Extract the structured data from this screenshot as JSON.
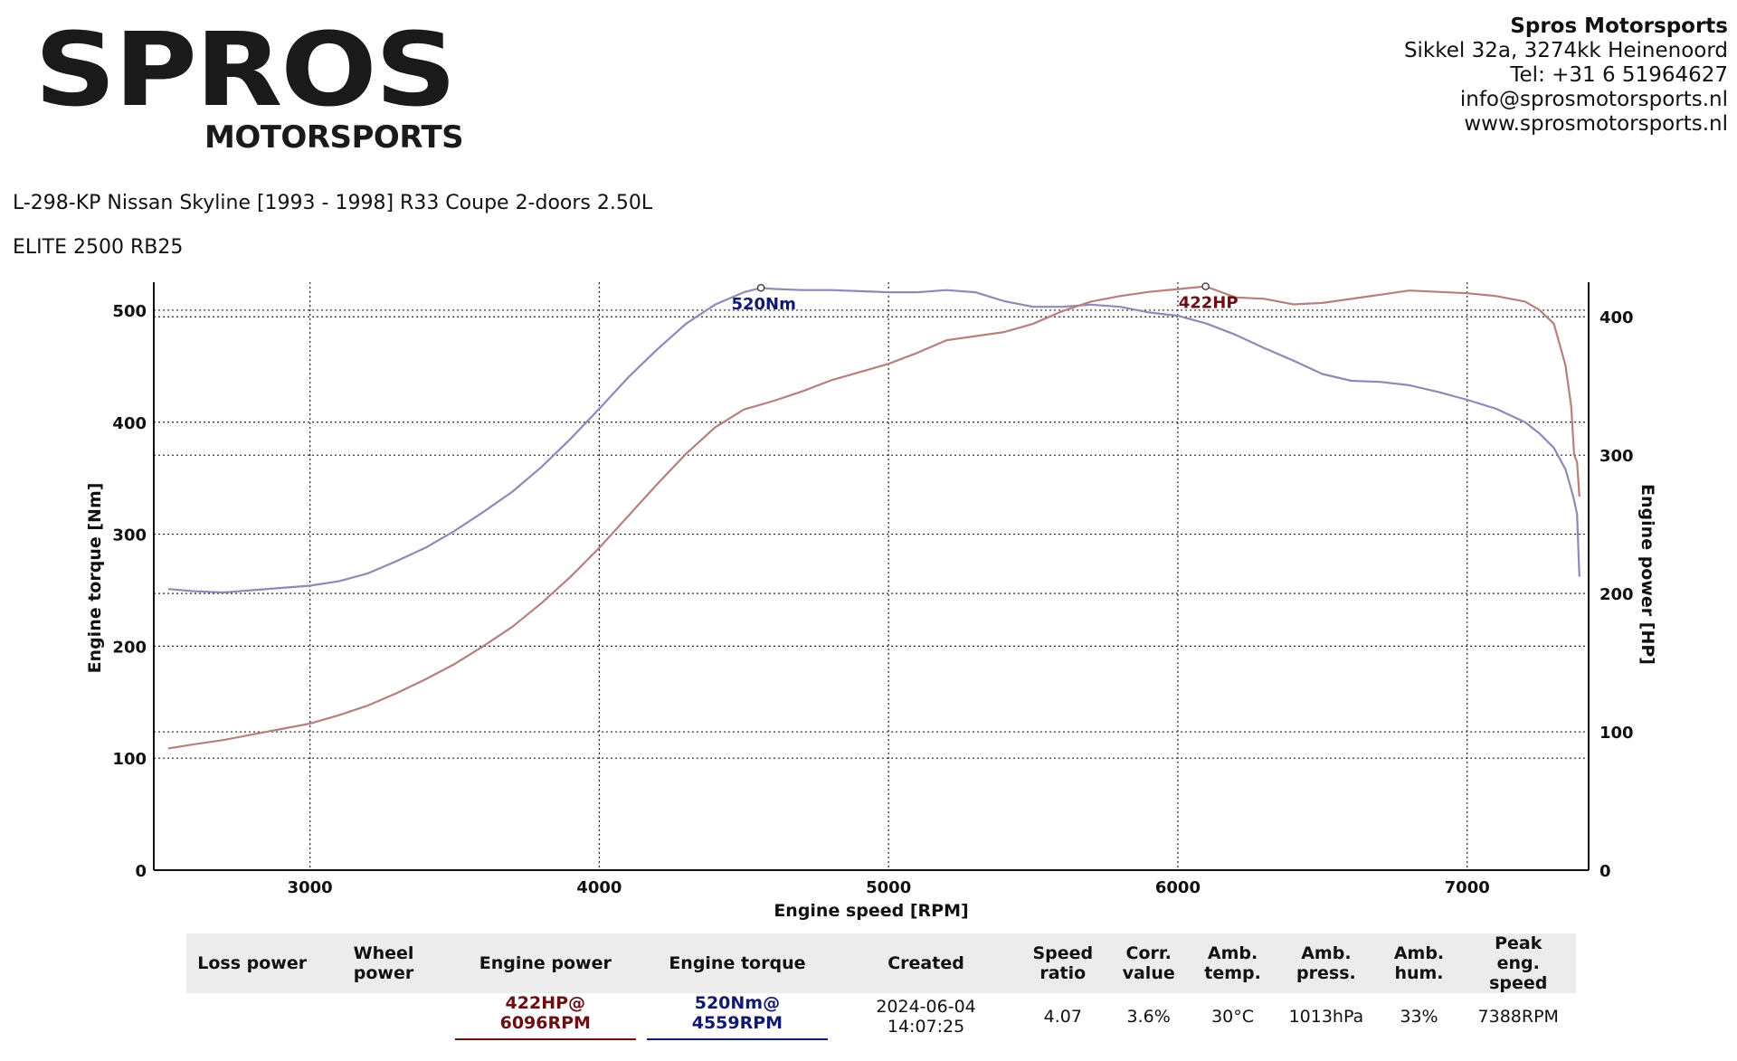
{
  "header": {
    "logo_text": "SPROS",
    "logo_subtext": "MOTORSPORTS",
    "company": "Spros Motorsports",
    "address": "Sikkel 32a, 3274kk Heinenoord",
    "phone": "Tel: +31 6 51964627",
    "email": "info@sprosmotorsports.nl",
    "website": "www.sprosmotorsports.nl"
  },
  "vehicle": {
    "description": "L-298-KP Nissan Skyline [1993 - 1998] R33 Coupe 2-doors 2.50L",
    "engine": "ELITE 2500 RB25"
  },
  "colors": {
    "torque_line": "#8a8cb5",
    "power_line": "#b5807e",
    "torque_label": "#101a6e",
    "power_label": "#6b0f12"
  },
  "chart_data": {
    "type": "line",
    "xlabel": "Engine speed [RPM]",
    "ylabel_left": "Engine torque [Nm]",
    "ylabel_right": "Engine power [HP]",
    "xlim": [
      2460,
      7420
    ],
    "ylim_left": [
      0,
      525
    ],
    "ylim_right": [
      0,
      425
    ],
    "x_ticks": [
      3000,
      4000,
      5000,
      6000,
      7000
    ],
    "y_ticks_left": [
      0,
      100,
      200,
      300,
      400,
      500
    ],
    "y_ticks_right": [
      0,
      100,
      200,
      300,
      400
    ],
    "grid": true,
    "series": [
      {
        "axis": "left",
        "color": "#8a8cb5",
        "x": [
          2510,
          2600,
          2700,
          2800,
          2900,
          3000,
          3100,
          3200,
          3300,
          3400,
          3500,
          3600,
          3700,
          3800,
          3900,
          4000,
          4100,
          4200,
          4300,
          4400,
          4500,
          4559,
          4600,
          4700,
          4800,
          4900,
          5000,
          5100,
          5200,
          5300,
          5400,
          5500,
          5600,
          5700,
          5800,
          5900,
          6000,
          6100,
          6200,
          6300,
          6400,
          6500,
          6600,
          6700,
          6800,
          6900,
          7000,
          7100,
          7200,
          7250,
          7300,
          7340,
          7360,
          7370,
          7380,
          7388
        ],
        "y": [
          251,
          249,
          248,
          250,
          252,
          254,
          258,
          265,
          276,
          288,
          303,
          320,
          338,
          360,
          385,
          412,
          440,
          465,
          488,
          505,
          516,
          520,
          519,
          518,
          518,
          517,
          516,
          516,
          518,
          516,
          508,
          503,
          503,
          505,
          503,
          498,
          495,
          488,
          478,
          466,
          455,
          443,
          437,
          436,
          433,
          427,
          420,
          412,
          400,
          390,
          377,
          358,
          340,
          330,
          318,
          262
        ]
      },
      {
        "axis": "right",
        "color": "#b5807e",
        "x": [
          2510,
          2600,
          2700,
          2800,
          2900,
          3000,
          3100,
          3200,
          3300,
          3400,
          3500,
          3600,
          3700,
          3800,
          3900,
          4000,
          4100,
          4200,
          4300,
          4400,
          4500,
          4600,
          4700,
          4800,
          4900,
          5000,
          5100,
          5200,
          5300,
          5400,
          5500,
          5600,
          5700,
          5800,
          5900,
          6000,
          6096,
          6200,
          6300,
          6400,
          6500,
          6600,
          6700,
          6800,
          6900,
          7000,
          7100,
          7200,
          7250,
          7300,
          7340,
          7360,
          7370,
          7380,
          7388
        ],
        "y": [
          88,
          91,
          94,
          98,
          102,
          106,
          112,
          119,
          128,
          138,
          149,
          162,
          176,
          193,
          212,
          233,
          256,
          279,
          301,
          320,
          333,
          339,
          346,
          354,
          360,
          366,
          374,
          383,
          386,
          389,
          395,
          404,
          411,
          415,
          418,
          420,
          422,
          414,
          413,
          409,
          410,
          413,
          416,
          419,
          418,
          417,
          415,
          411,
          405,
          395,
          365,
          335,
          300,
          295,
          270
        ]
      }
    ],
    "annotations": [
      {
        "label": "520Nm",
        "x": 4559,
        "y": 520,
        "axis": "left"
      },
      {
        "label": "422HP",
        "x": 6096,
        "y": 422,
        "axis": "right"
      }
    ]
  },
  "summary": {
    "headers": [
      [
        "Loss power"
      ],
      [
        "Wheel power"
      ],
      [
        "Engine power"
      ],
      [
        "Engine torque"
      ],
      [
        "Created"
      ],
      [
        "Speed",
        "ratio"
      ],
      [
        "Corr.",
        "value"
      ],
      [
        "Amb.",
        "temp."
      ],
      [
        "Amb.",
        "press."
      ],
      [
        "Amb.",
        "hum."
      ],
      [
        "Peak",
        "eng. speed"
      ]
    ],
    "values": [
      "",
      "",
      "422HP@ 6096RPM",
      "520Nm@ 4559RPM",
      "2024-06-04 14:07:25",
      "4.07",
      "3.6%",
      "30°C",
      "1013hPa",
      "33%",
      "7388RPM"
    ]
  }
}
